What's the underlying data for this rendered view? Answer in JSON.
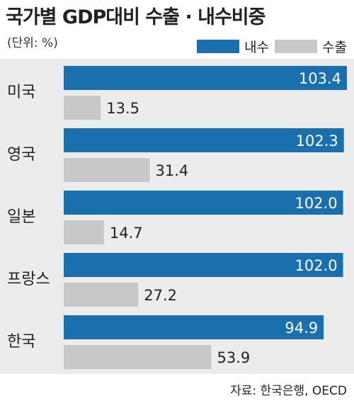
{
  "title": "국가별 GDP대비 수출 · 내수비중",
  "unit": "(단위: %)",
  "source": "자료: 한국은행, OECD",
  "colors": {
    "domestic": "#1a6fad",
    "export": "#c8c8c8",
    "background": "#ececec"
  },
  "chart_data": {
    "type": "bar",
    "orientation": "horizontal",
    "categories": [
      "미국",
      "영국",
      "일본",
      "프랑스",
      "한국"
    ],
    "series": [
      {
        "name": "내수",
        "values": [
          103.4,
          102.3,
          102.0,
          102.0,
          94.9
        ],
        "value_labels": [
          "103.4",
          "102.3",
          "102.0",
          "102.0",
          "94.9"
        ]
      },
      {
        "name": "수출",
        "values": [
          13.5,
          31.4,
          14.7,
          27.2,
          53.9
        ],
        "value_labels": [
          "13.5",
          "31.4",
          "14.7",
          "27.2",
          "53.9"
        ]
      }
    ],
    "legend": "top-right",
    "xlim": [
      0,
      103.4
    ],
    "grid": false
  }
}
